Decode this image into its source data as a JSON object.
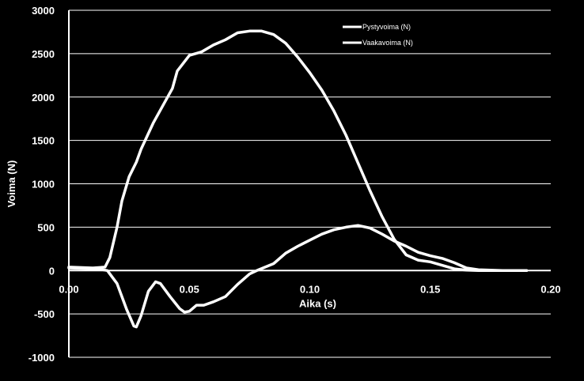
{
  "chart_data": {
    "type": "line",
    "title": "",
    "xlabel": "Aika (s)",
    "ylabel": "Voima (N)",
    "xlim": [
      0.0,
      0.2
    ],
    "ylim": [
      -1000,
      3000
    ],
    "xticks": [
      "0.00",
      "0.05",
      "0.10",
      "0.15",
      "0.20"
    ],
    "yticks": [
      "3000",
      "2500",
      "2000",
      "1500",
      "1000",
      "500",
      "0",
      "-500",
      "-1000"
    ],
    "grid": "horizontal",
    "legend_position": "top-right",
    "series_color": "#ffffff",
    "series": [
      {
        "name": "Pystyvoima (N)",
        "x": [
          0.0,
          0.01,
          0.015,
          0.017,
          0.02,
          0.022,
          0.025,
          0.028,
          0.03,
          0.035,
          0.04,
          0.043,
          0.045,
          0.05,
          0.055,
          0.06,
          0.065,
          0.07,
          0.075,
          0.08,
          0.085,
          0.09,
          0.095,
          0.1,
          0.105,
          0.11,
          0.115,
          0.12,
          0.125,
          0.13,
          0.135,
          0.14,
          0.145,
          0.15,
          0.155,
          0.16,
          0.165,
          0.17,
          0.18,
          0.19
        ],
        "y": [
          40,
          30,
          40,
          150,
          500,
          800,
          1080,
          1250,
          1400,
          1700,
          1950,
          2100,
          2300,
          2480,
          2520,
          2600,
          2660,
          2740,
          2760,
          2760,
          2720,
          2620,
          2460,
          2280,
          2080,
          1840,
          1560,
          1240,
          920,
          620,
          360,
          180,
          120,
          100,
          60,
          20,
          5,
          0,
          0,
          0
        ]
      },
      {
        "name": "Vaakavoima (N)",
        "x": [
          0.0,
          0.012,
          0.016,
          0.02,
          0.024,
          0.027,
          0.028,
          0.03,
          0.033,
          0.036,
          0.038,
          0.042,
          0.046,
          0.048,
          0.05,
          0.053,
          0.056,
          0.06,
          0.065,
          0.07,
          0.075,
          0.078,
          0.085,
          0.09,
          0.095,
          0.1,
          0.105,
          0.11,
          0.115,
          0.12,
          0.125,
          0.13,
          0.135,
          0.14,
          0.145,
          0.15,
          0.155,
          0.16,
          0.165,
          0.17,
          0.18,
          0.19
        ],
        "y": [
          30,
          20,
          0,
          -150,
          -450,
          -640,
          -650,
          -520,
          -240,
          -130,
          -150,
          -300,
          -440,
          -480,
          -470,
          -400,
          -400,
          -360,
          -300,
          -160,
          -40,
          0,
          80,
          200,
          280,
          350,
          420,
          470,
          500,
          520,
          490,
          420,
          340,
          280,
          210,
          170,
          140,
          90,
          30,
          10,
          0,
          0
        ]
      }
    ]
  }
}
